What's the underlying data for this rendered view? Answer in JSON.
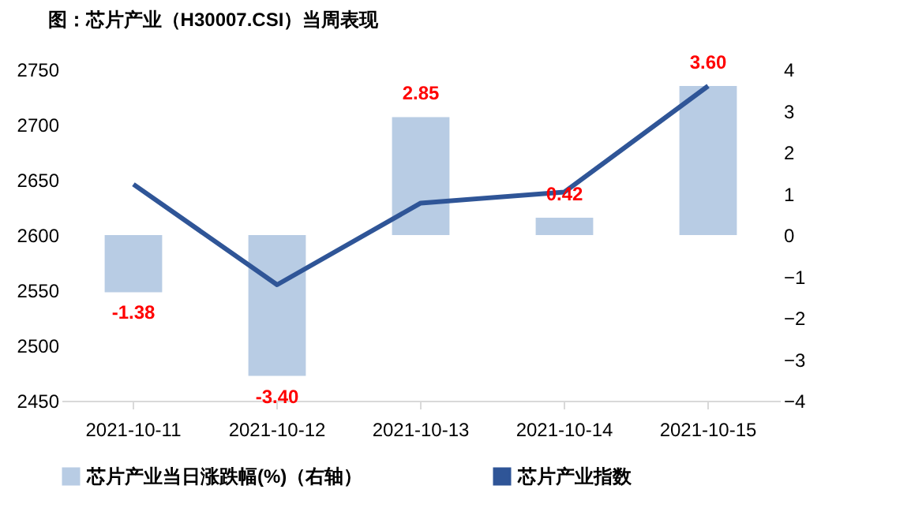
{
  "chart_data": {
    "type": "bar",
    "title": "图：芯片产业（H30007.CSI）当周表现",
    "categories": [
      "2021-10-11",
      "2021-10-12",
      "2021-10-13",
      "2021-10-14",
      "2021-10-15"
    ],
    "series": [
      {
        "name": "芯片产业当日涨跌幅(%)（右轴）",
        "axis": "y2",
        "color": "#b8cce4",
        "values": [
          -1.38,
          -3.4,
          2.85,
          0.42,
          3.6
        ],
        "value_labels": [
          "-1.38",
          "-3.40",
          "2.85",
          "0.42",
          "3.60"
        ]
      },
      {
        "name": "芯片产业指数",
        "type": "line",
        "color": "#2f5597",
        "values": [
          2646,
          2555,
          2629,
          2639,
          2735
        ]
      }
    ],
    "ylim": [
      2450,
      2750
    ],
    "yticks": [
      2450,
      2500,
      2550,
      2600,
      2650,
      2700,
      2750
    ],
    "y2lim": [
      -4,
      4
    ],
    "y2ticks": [
      -4,
      -3,
      -2,
      -1,
      0,
      1,
      2,
      3,
      4
    ],
    "grid": false,
    "legend": "bottom"
  }
}
